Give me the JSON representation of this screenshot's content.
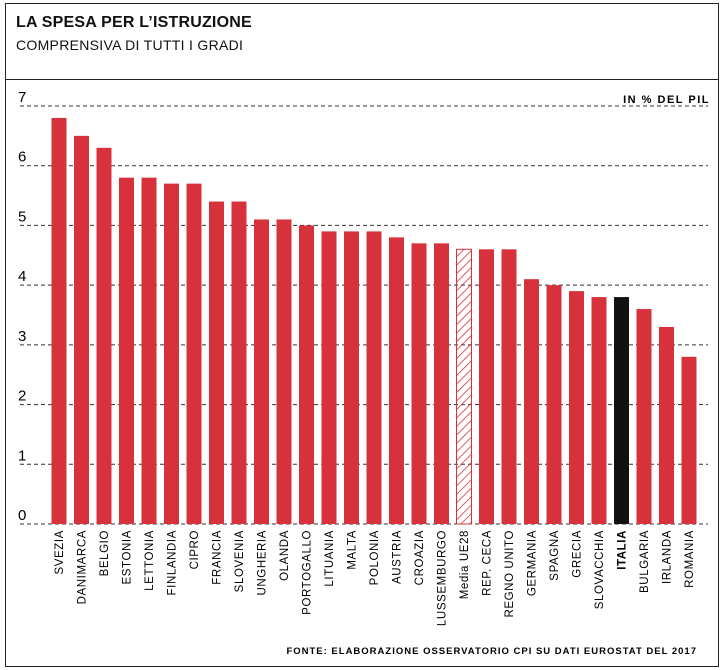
{
  "header": {
    "title": "LA SPESA PER L’ISTRUZIONE",
    "subtitle": "COMPRENSIVA DI TUTTI I GRADI"
  },
  "chart_data": {
    "type": "bar",
    "unit_label": "IN % DEL PIL",
    "ylim": [
      0,
      7
    ],
    "yticks": [
      0,
      1,
      2,
      3,
      4,
      5,
      6,
      7
    ],
    "grid": "horizontal dashed",
    "categories": [
      "SVEZIA",
      "DANIMARCA",
      "BELGIO",
      "ESTONIA",
      "LETTONIA",
      "FINLANDIA",
      "CIPRO",
      "FRANCIA",
      "SLOVENIA",
      "UNGHERIA",
      "OLANDA",
      "PORTOGALLO",
      "LITUANIA",
      "MALTA",
      "POLONIA",
      "AUSTRIA",
      "CROAZIA",
      "LUSSEMBURGO",
      "Media UE28",
      "REP. CECA",
      "REGNO UNITO",
      "GERMANIA",
      "SPAGNA",
      "GRECIA",
      "SLOVACCHIA",
      "ITALIA",
      "BULGARIA",
      "IRLANDA",
      "ROMANIA"
    ],
    "values": [
      6.8,
      6.5,
      6.3,
      5.8,
      5.8,
      5.7,
      5.7,
      5.4,
      5.4,
      5.1,
      5.1,
      5.0,
      4.9,
      4.9,
      4.9,
      4.8,
      4.7,
      4.7,
      4.6,
      4.6,
      4.6,
      4.1,
      4.0,
      3.9,
      3.8,
      3.8,
      3.6,
      3.3,
      2.8
    ],
    "highlight": {
      "average": "Media UE28",
      "focus": "ITALIA"
    },
    "colors": {
      "default": "#d7323c",
      "average_hatch": "#d7323c",
      "focus": "#111111",
      "grid": "#333333"
    },
    "source": "FONTE: ELABORAZIONE OSSERVATORIO CPI SU DATI EUROSTAT DEL 2017"
  }
}
